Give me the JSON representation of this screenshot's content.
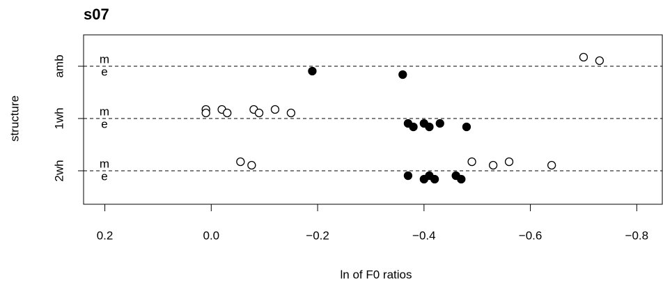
{
  "chart_data": {
    "type": "stripchart",
    "title": "s07",
    "xlabel": "ln of F0 ratios",
    "ylabel": "structure",
    "categories": [
      "amb",
      "1wh",
      "2wh"
    ],
    "series": [
      {
        "name": "m",
        "marker": "open",
        "color": "#000000",
        "values": [
          [
            -0.7,
            -0.73
          ],
          [
            0.01,
            0.01,
            -0.02,
            -0.03,
            -0.08,
            -0.09,
            -0.12,
            -0.15
          ],
          [
            -0.055,
            -0.076,
            -0.49,
            -0.53,
            -0.56,
            -0.64
          ]
        ]
      },
      {
        "name": "e",
        "marker": "filled",
        "color": "#000000",
        "values": [
          [
            -0.19,
            -0.36
          ],
          [
            -0.37,
            -0.38,
            -0.4,
            -0.41,
            -0.43,
            -0.48
          ],
          [
            -0.37,
            -0.4,
            -0.41,
            -0.42,
            -0.46,
            -0.47
          ]
        ]
      }
    ],
    "xlim": [
      0.24,
      -0.848
    ],
    "xticks": [
      0.2,
      {
        "value": 0,
        "label": "0.0"
      },
      {
        "value": -0.2,
        "label": "−0.2"
      },
      {
        "value": -0.4,
        "label": "−0.4"
      },
      {
        "value": -0.6,
        "label": "−0.6"
      },
      {
        "value": -0.8,
        "label": "−0.8"
      }
    ],
    "reference_lines": true
  }
}
